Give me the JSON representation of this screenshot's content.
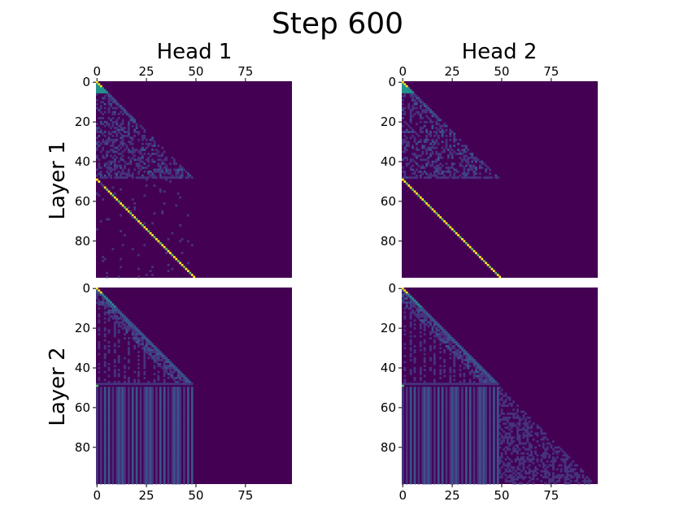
{
  "chart_data": {
    "type": "heatmap",
    "title": "Step 600",
    "column_titles": [
      "Head 1",
      "Head 2"
    ],
    "row_titles": [
      "Layer 1",
      "Layer 2"
    ],
    "colormap": "viridis",
    "size": 99,
    "tick_values": [
      0,
      25,
      50,
      75
    ],
    "y_tick_values": [
      0,
      20,
      40,
      60,
      80
    ],
    "top_x_ticks_panels": [
      "layer1-head1",
      "layer1-head2"
    ],
    "bottom_x_ticks_panels": [
      "layer2-head1",
      "layer2-head2"
    ],
    "colors": {
      "background": "#440154",
      "low": "#46327e",
      "mid": "#3b528b",
      "teal": "#21918c",
      "green": "#5ec962",
      "yellow": "#fde725"
    },
    "panels": [
      {
        "id": "layer1-head1",
        "layer": "Layer 1",
        "head": "Head 1",
        "pattern": "lower triangle over first 49 query positions (diffuse, bright near diagonal); queries 49-98 attend sharply to key (q - 49); sparse noise in lower-left block"
      },
      {
        "id": "layer1-head2",
        "layer": "Layer 1",
        "head": "Head 2",
        "pattern": "lower triangle over first 49 query positions (diffuse, bright near diagonal); queries 49-98 attend sharply to key (q - 49)"
      },
      {
        "id": "layer2-head1",
        "layer": "Layer 2",
        "head": "Head 1",
        "pattern": "lower triangle over first 49 query positions with bright diagonal and vertical streaks; queries 49-98 attend weakly and uniformly to keys 0-48; query 49 attends to key 0"
      },
      {
        "id": "layer2-head2",
        "layer": "Layer 2",
        "head": "Head 2",
        "pattern": "lower triangle over first 49 query positions with bright diagonal and vertical streaks; queries 49-98 attend weakly to all previous keys (faint full lower triangle); query 49 attends to key 0"
      }
    ]
  }
}
